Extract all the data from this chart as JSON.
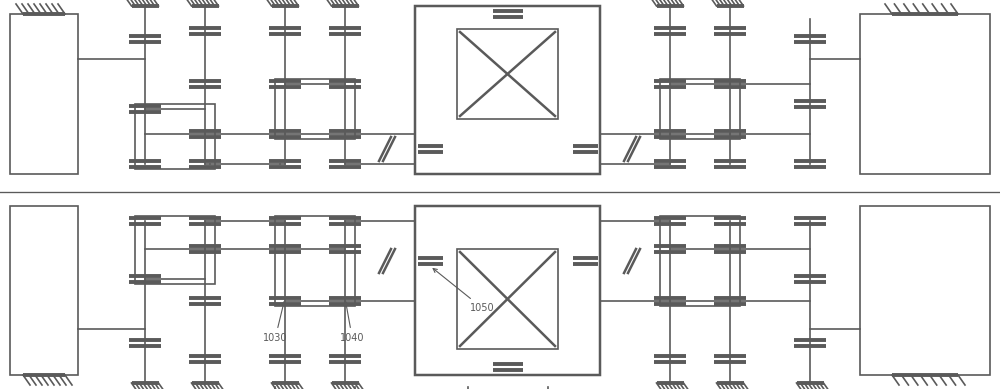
{
  "bg_color": "#ffffff",
  "line_color": "#5a5a5a",
  "lw": 1.2,
  "tlw": 2.8,
  "fig_width": 10.0,
  "fig_height": 3.89
}
